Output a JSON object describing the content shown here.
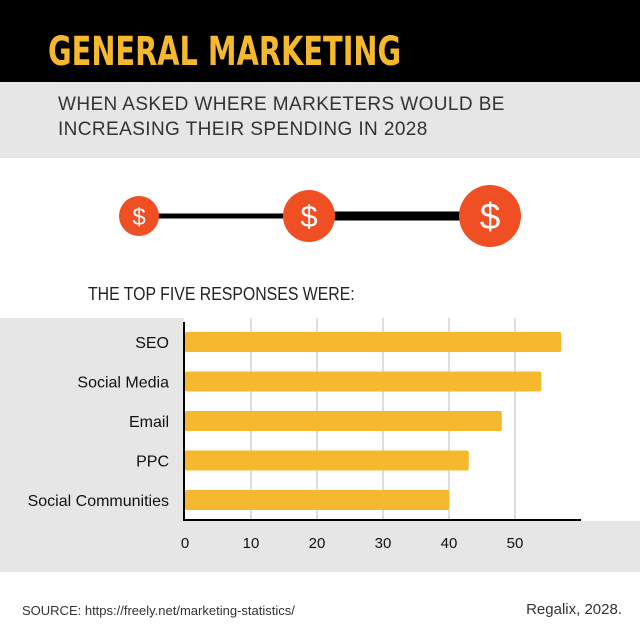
{
  "header": {
    "title": "GENERAL MARKETING",
    "subtitle_lines": [
      "WHEN ASKED WHERE MARKETERS WOULD BE",
      "INCREASING THEIR SPENDING IN 2028"
    ]
  },
  "scale_icons": {
    "icon": "dollar-sign-icon",
    "glyph": "$",
    "color": "#f04e23"
  },
  "chart_label": "THE TOP FIVE RESPONSES WERE:",
  "chart_data": {
    "type": "bar",
    "orientation": "horizontal",
    "categories": [
      "SEO",
      "Social Media",
      "Email",
      "PPC",
      "Social Communities"
    ],
    "values": [
      57,
      54,
      48,
      43,
      40
    ],
    "xticks": [
      "0",
      "10",
      "20",
      "30",
      "40",
      "50"
    ],
    "xlim": [
      0,
      60
    ],
    "grid": true,
    "bar_color": "#f5b82e"
  },
  "footer": {
    "source": "SOURCE: https://freely.net/marketing-statistics/",
    "credit": "Regalix, 2028."
  }
}
